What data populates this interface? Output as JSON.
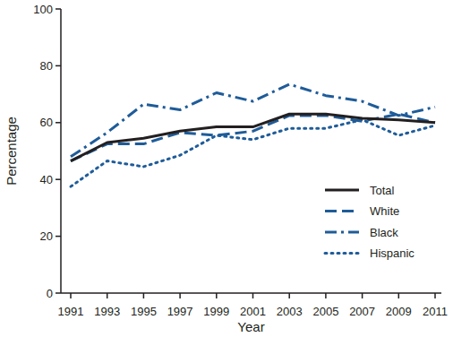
{
  "chart_data": {
    "type": "line",
    "x_label": "Year",
    "y_label": "Percentage",
    "categories": [
      "1991",
      "1993",
      "1995",
      "1997",
      "1999",
      "2001",
      "2003",
      "2005",
      "2007",
      "2009",
      "2011"
    ],
    "series": [
      {
        "name": "Total",
        "color": "#231f20",
        "line_style": "solid",
        "values": [
          46.5,
          53,
          54.5,
          57,
          58.5,
          58.5,
          63,
          63,
          61.5,
          61,
          60
        ]
      },
      {
        "name": "White",
        "color": "#1f5c99",
        "line_style": "dashed",
        "values": [
          46.5,
          52.5,
          52.5,
          56.5,
          55.5,
          57,
          62.5,
          62.5,
          60.5,
          63,
          60
        ]
      },
      {
        "name": "Black",
        "color": "#1f5c99",
        "line_style": "dashdot",
        "values": [
          48,
          56.5,
          66.5,
          64.5,
          70.5,
          67.5,
          73.5,
          69.5,
          67.5,
          62.5,
          65.5
        ]
      },
      {
        "name": "Hispanic",
        "color": "#1f5c99",
        "line_style": "dotted",
        "values": [
          37.5,
          46.5,
          44.5,
          48.5,
          55.5,
          54,
          58,
          58,
          61,
          55.5,
          59
        ]
      }
    ],
    "ylim": [
      0,
      100
    ],
    "yticks": [
      0,
      20,
      40,
      60,
      80,
      100
    ],
    "grid": false,
    "legend": "lower right"
  }
}
